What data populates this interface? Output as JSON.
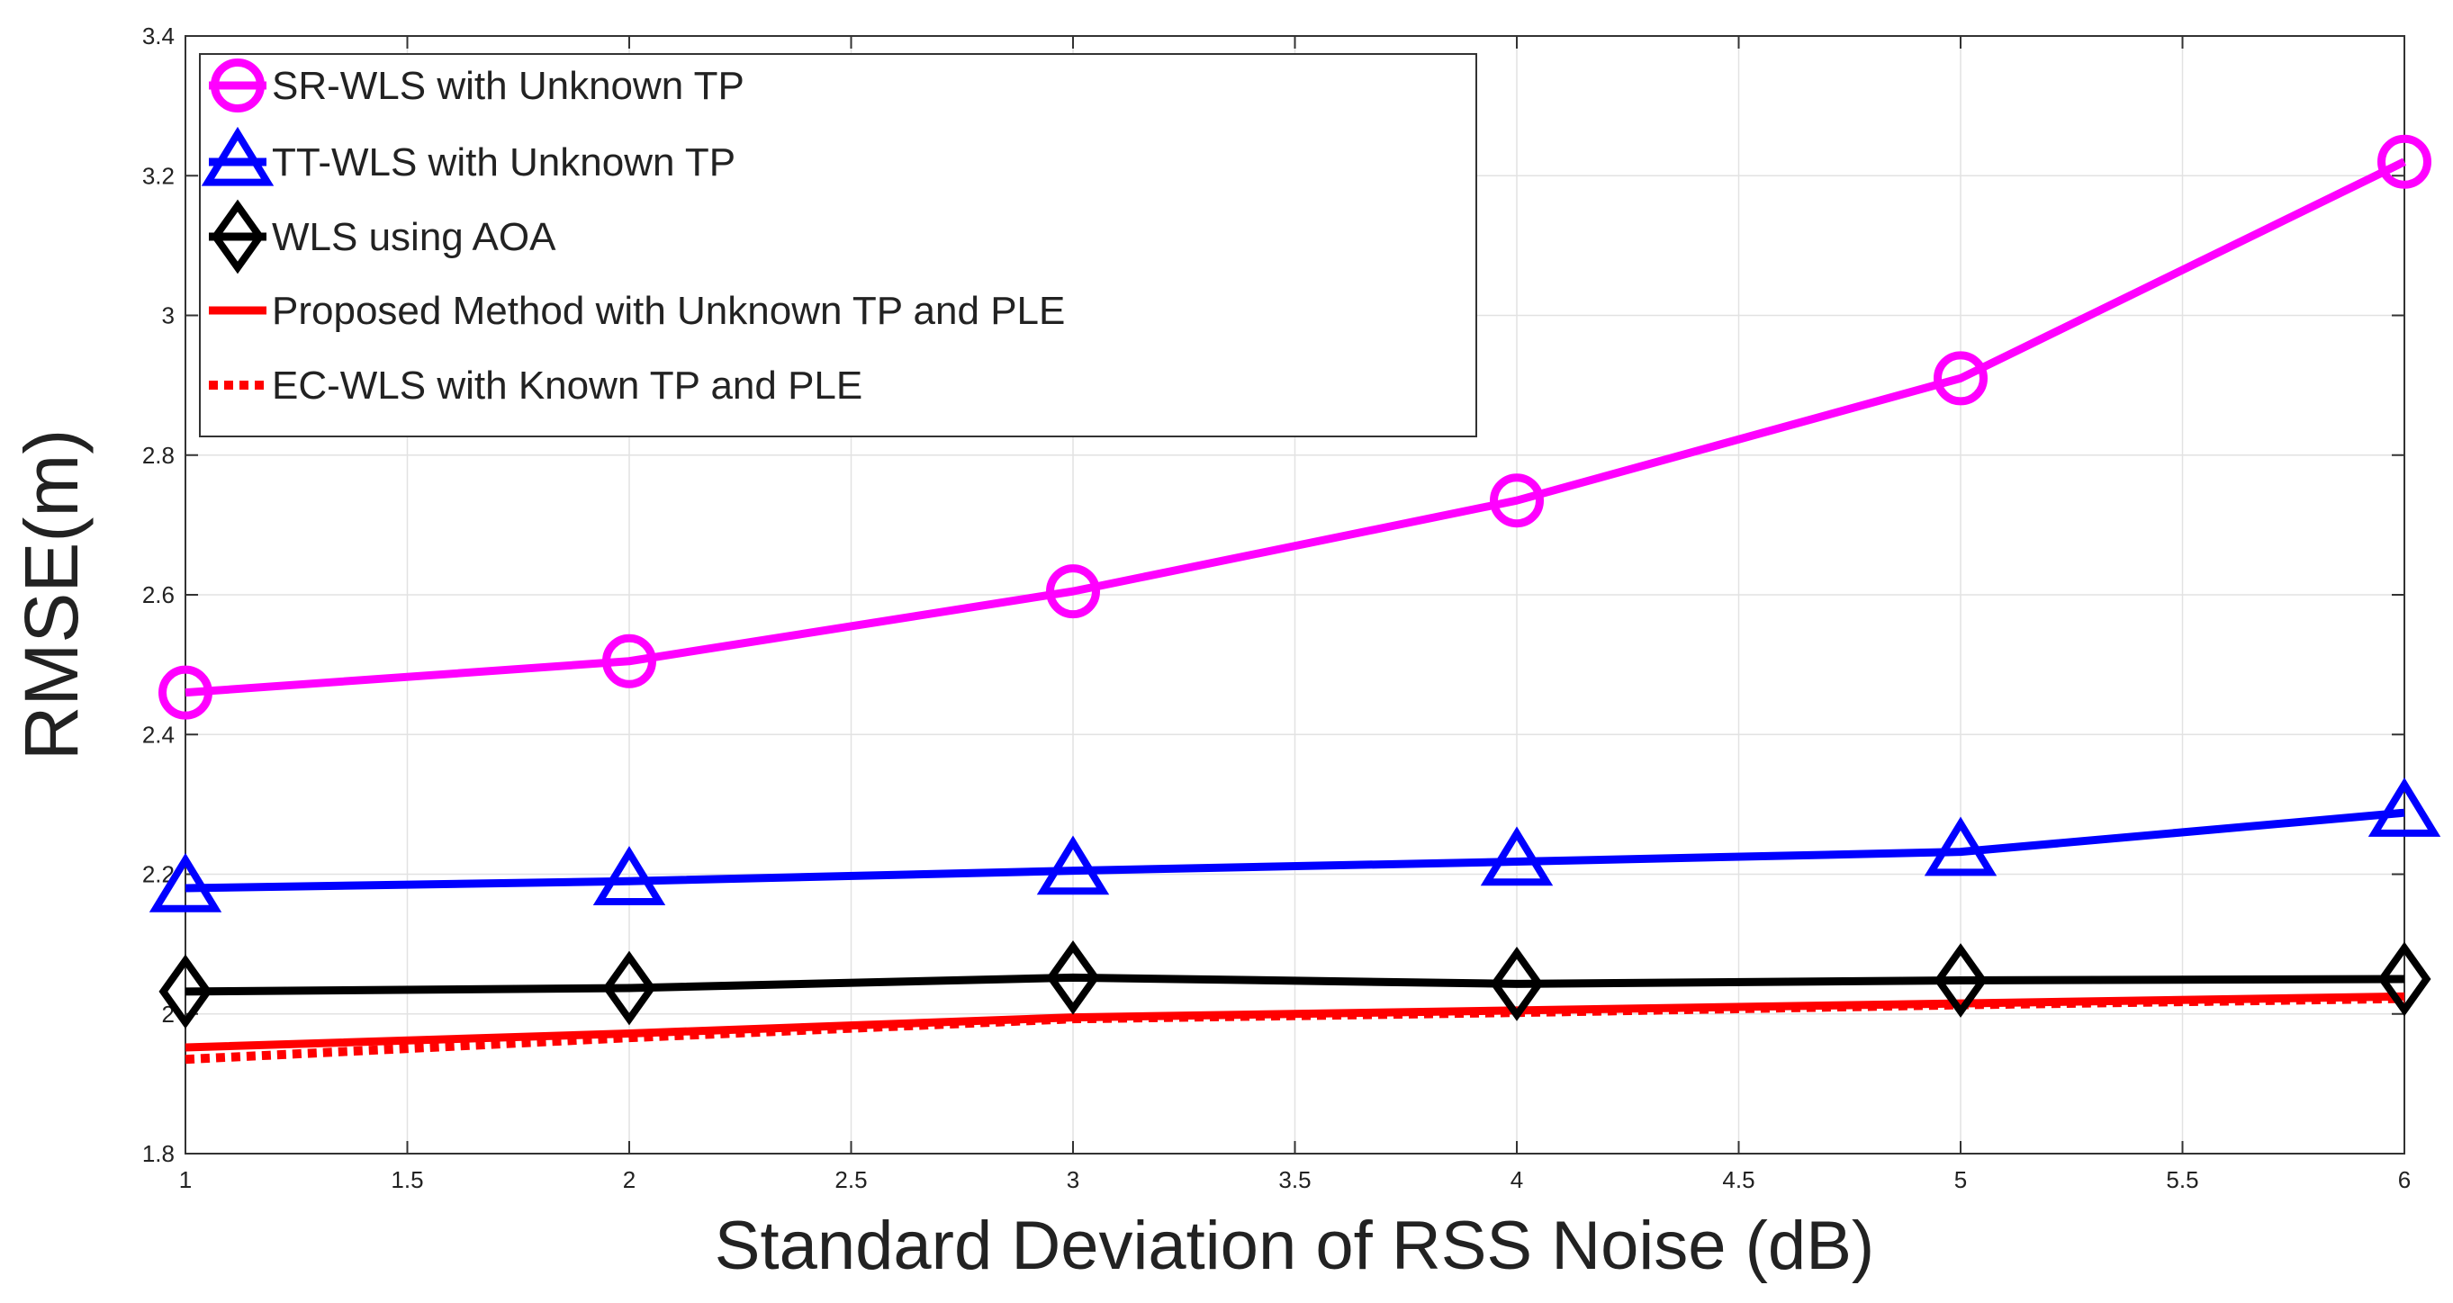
{
  "chart_data": {
    "type": "line",
    "title": "",
    "xlabel": "Standard Deviation of RSS Noise (dB)",
    "ylabel": "RMSE(m)",
    "xlim": [
      1,
      6
    ],
    "ylim": [
      1.8,
      3.4
    ],
    "grid": true,
    "legend_position": "top-left",
    "x": [
      1,
      2,
      3,
      4,
      5,
      6
    ],
    "x_ticks": [
      "1",
      "1.5",
      "2",
      "2.5",
      "3",
      "3.5",
      "4",
      "4.5",
      "5",
      "5.5",
      "6"
    ],
    "y_ticks": [
      "1.8",
      "2",
      "2.2",
      "2.4",
      "2.6",
      "2.8",
      "3",
      "3.2",
      "3.4"
    ],
    "series": [
      {
        "name": "SR-WLS with Unknown TP",
        "color": "#ff00ff",
        "marker": "circle",
        "line_style": "solid",
        "values": [
          2.46,
          2.505,
          2.605,
          2.735,
          2.91,
          3.22
        ]
      },
      {
        "name": "TT-WLS with Unknown TP",
        "color": "#0000ff",
        "marker": "triangle",
        "line_style": "solid",
        "values": [
          2.18,
          2.19,
          2.205,
          2.218,
          2.232,
          2.288
        ]
      },
      {
        "name": "WLS using AOA",
        "color": "#000000",
        "marker": "diamond",
        "line_style": "solid",
        "values": [
          2.032,
          2.037,
          2.052,
          2.043,
          2.048,
          2.05
        ]
      },
      {
        "name": "Proposed Method with Unknown TP and PLE",
        "color": "#ff0000",
        "marker": "none",
        "line_style": "solid",
        "values": [
          1.952,
          1.972,
          1.995,
          2.005,
          2.015,
          2.025
        ]
      },
      {
        "name": "EC-WLS with Known TP and PLE",
        "color": "#ff0000",
        "marker": "none",
        "line_style": "dotted",
        "values": [
          1.935,
          1.966,
          1.993,
          2.002,
          2.013,
          2.022
        ]
      }
    ]
  }
}
